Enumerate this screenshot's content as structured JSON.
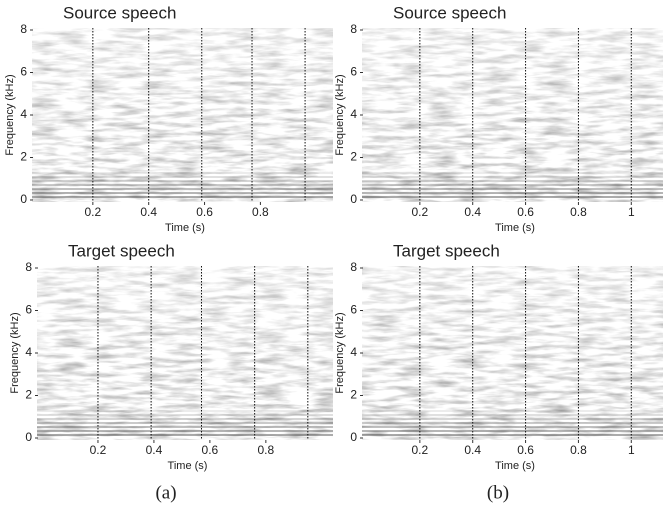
{
  "chart_data": [
    {
      "type": "spectrogram",
      "title": "Source speech",
      "x_label": "Time (s)",
      "y_label": "Frequency (kHz)",
      "xlim": [
        0,
        1.06
      ],
      "xticks": [
        0.2,
        0.4,
        0.6,
        0.8
      ],
      "ylim": [
        0,
        8
      ],
      "yticks": [
        0,
        2,
        4,
        6,
        8
      ],
      "boundaries": [
        0.2,
        0.4,
        0.59,
        0.77,
        0.96
      ]
    },
    {
      "type": "spectrogram",
      "title": "Source speech",
      "x_label": "Time (s)",
      "y_label": "Frequency (kHz)",
      "xlim": [
        0,
        1.12
      ],
      "xticks": [
        0.2,
        0.4,
        0.6,
        0.8,
        1
      ],
      "ylim": [
        0,
        8
      ],
      "yticks": [
        0,
        2,
        4,
        6,
        8
      ],
      "boundaries": [
        0.2,
        0.4,
        0.6,
        0.8,
        1
      ]
    },
    {
      "type": "spectrogram",
      "title": "Target speech",
      "x_label": "Time (s)",
      "y_label": "Frequency (kHz)",
      "xlim": [
        0,
        1.04
      ],
      "xticks": [
        0.2,
        0.4,
        0.6,
        0.8
      ],
      "ylim": [
        0,
        8
      ],
      "yticks": [
        0,
        2,
        4,
        6,
        8
      ],
      "boundaries": [
        0.2,
        0.39,
        0.57,
        0.76,
        0.95
      ]
    },
    {
      "type": "spectrogram",
      "title": "Target speech",
      "x_label": "Time (s)",
      "y_label": "Frequency (kHz)",
      "xlim": [
        0,
        1.12
      ],
      "xticks": [
        0.2,
        0.4,
        0.6,
        0.8,
        1
      ],
      "ylim": [
        0,
        8
      ],
      "yticks": [
        0,
        2,
        4,
        6,
        8
      ],
      "boundaries": [
        0.2,
        0.4,
        0.6,
        0.8,
        1
      ]
    }
  ],
  "captions": [
    "(a)",
    "(b)"
  ]
}
